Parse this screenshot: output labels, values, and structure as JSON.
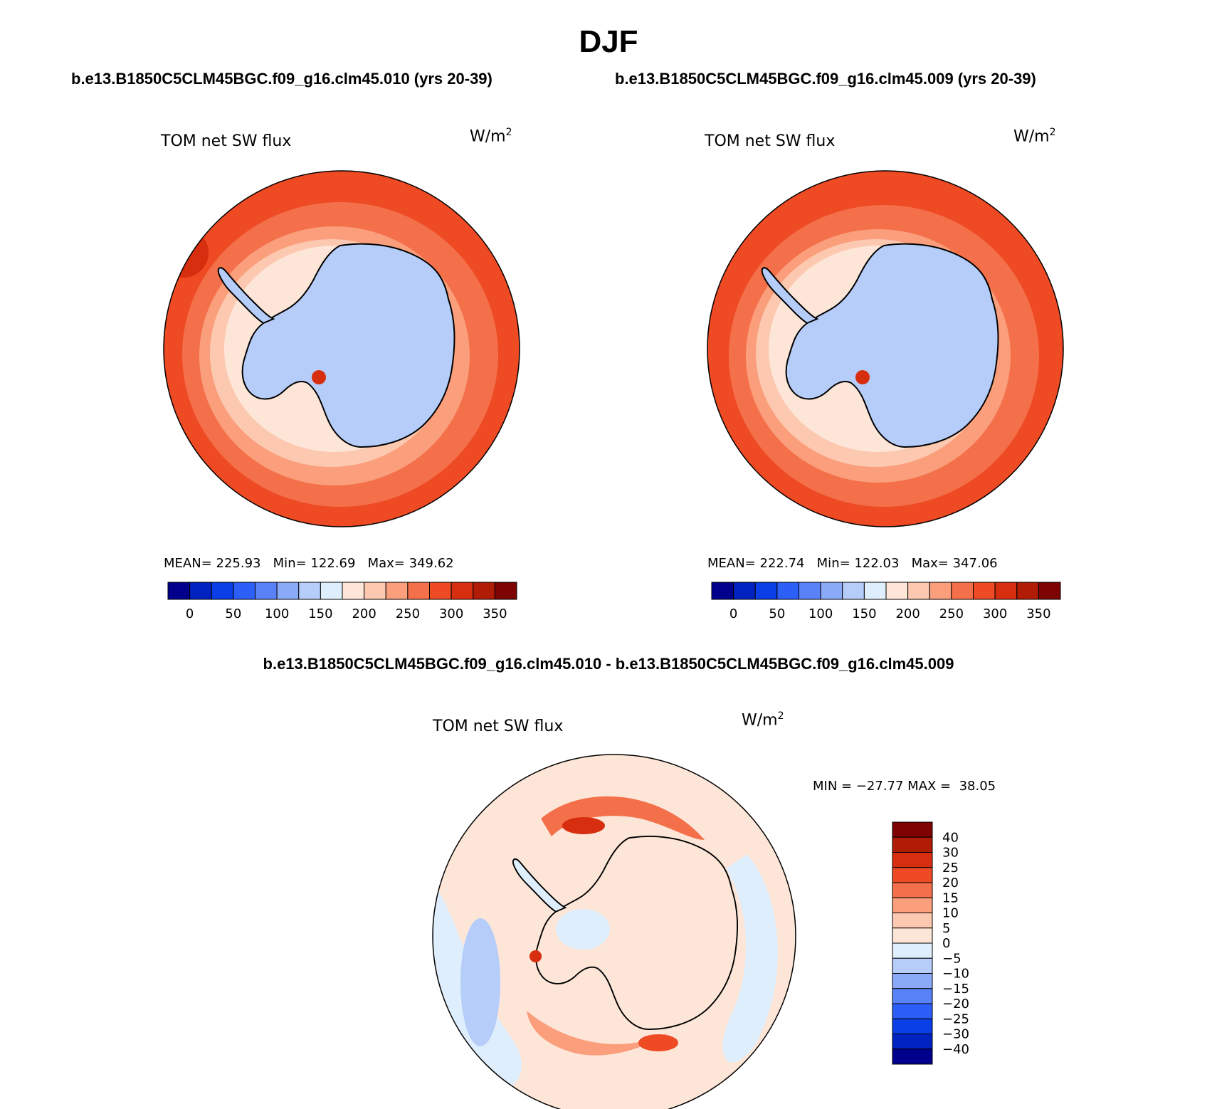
{
  "title": "DJF",
  "panels": [
    {
      "case_title": "b.e13.B1850C5CLM45BGC.f09_g16.clm45.010 (yrs 20-39)",
      "variable": "TOM net SW flux",
      "units": "W/m",
      "units_exp": "2",
      "stats": {
        "mean_label": "MEAN=",
        "mean": "225.93",
        "min_label": "Min=",
        "min": "122.69",
        "max_label": "Max=",
        "max": "349.62"
      }
    },
    {
      "case_title": "b.e13.B1850C5CLM45BGC.f09_g16.clm45.009 (yrs 20-39)",
      "variable": "TOM net SW flux",
      "units": "W/m",
      "units_exp": "2",
      "stats": {
        "mean_label": "MEAN=",
        "mean": "222.74",
        "min_label": "Min=",
        "min": "122.03",
        "max_label": "Max=",
        "max": "347.06"
      }
    }
  ],
  "diff_panel": {
    "title": "b.e13.B1850C5CLM45BGC.f09_g16.clm45.010 - b.e13.B1850C5CLM45BGC.f09_g16.clm45.009",
    "variable": "TOM net SW flux",
    "units": "W/m",
    "units_exp": "2",
    "minmax": "MIN = −27.77 MAX =  38.05"
  },
  "abs_colorbar": {
    "colors": [
      "#00008c",
      "#0022c0",
      "#0a3ee6",
      "#2c5ef8",
      "#5a82f8",
      "#8aaaf8",
      "#b6cdfa",
      "#deeefc",
      "#fde6d8",
      "#fcc8b0",
      "#fa9e7c",
      "#f4704a",
      "#ee4a24",
      "#d62e0e",
      "#b01c06",
      "#7e0404"
    ],
    "tick_labels": [
      "0",
      "50",
      "100",
      "150",
      "200",
      "250",
      "300",
      "350"
    ]
  },
  "diff_colorbar": {
    "colors": [
      "#00008c",
      "#0022c0",
      "#0a3ee6",
      "#2c5ef8",
      "#5a82f8",
      "#8aaaf8",
      "#b6cdfa",
      "#deeefc",
      "#fde6d8",
      "#fcc8b0",
      "#fa9e7c",
      "#f4704a",
      "#ee4a24",
      "#d62e0e",
      "#b01c06",
      "#7e0404"
    ],
    "tick_labels": [
      "40",
      "30",
      "25",
      "20",
      "15",
      "10",
      "5",
      "0",
      "−5",
      "−10",
      "−15",
      "−20",
      "−25",
      "−30",
      "−40"
    ]
  }
}
